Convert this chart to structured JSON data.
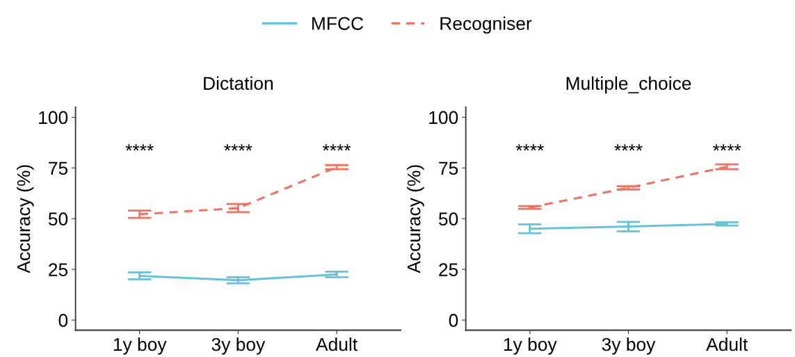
{
  "chart_data": [
    {
      "type": "line",
      "title": "Dictation",
      "ylabel": "Accuracy (%)",
      "categories": [
        "1y boy",
        "3y boy",
        "Adult"
      ],
      "ylim": [
        -5,
        105
      ],
      "yticks": [
        0,
        25,
        50,
        75,
        100
      ],
      "grid": false,
      "legend": "top",
      "marker": "none",
      "series": [
        {
          "name": "MFCC",
          "color": "#66c2d8",
          "line_style": "solid",
          "values": [
            21.8,
            19.6,
            22.5
          ],
          "errors": [
            1.7,
            1.5,
            1.4
          ]
        },
        {
          "name": "Recogniser",
          "color": "#f07260",
          "line_style": "dashed",
          "values": [
            52.2,
            55.2,
            75.4
          ],
          "errors": [
            1.8,
            2.0,
            1.0
          ]
        }
      ],
      "annotations": [
        "****",
        "****",
        "****"
      ]
    },
    {
      "type": "line",
      "title": "Multiple_choice",
      "ylabel": "Accuracy (%)",
      "categories": [
        "1y boy",
        "3y boy",
        "Adult"
      ],
      "ylim": [
        -5,
        105
      ],
      "yticks": [
        0,
        25,
        50,
        75,
        100
      ],
      "grid": false,
      "marker": "none",
      "series": [
        {
          "color": "#66c2d8",
          "line_style": "solid",
          "values": [
            45.0,
            46.1,
            47.4
          ],
          "errors": [
            2.2,
            2.3,
            0.8
          ]
        },
        {
          "color": "#f07260",
          "line_style": "dashed",
          "values": [
            55.5,
            65.2,
            75.6
          ],
          "errors": [
            0.7,
            0.8,
            1.2
          ]
        }
      ],
      "annotations": [
        "****",
        "****",
        "****"
      ]
    }
  ]
}
